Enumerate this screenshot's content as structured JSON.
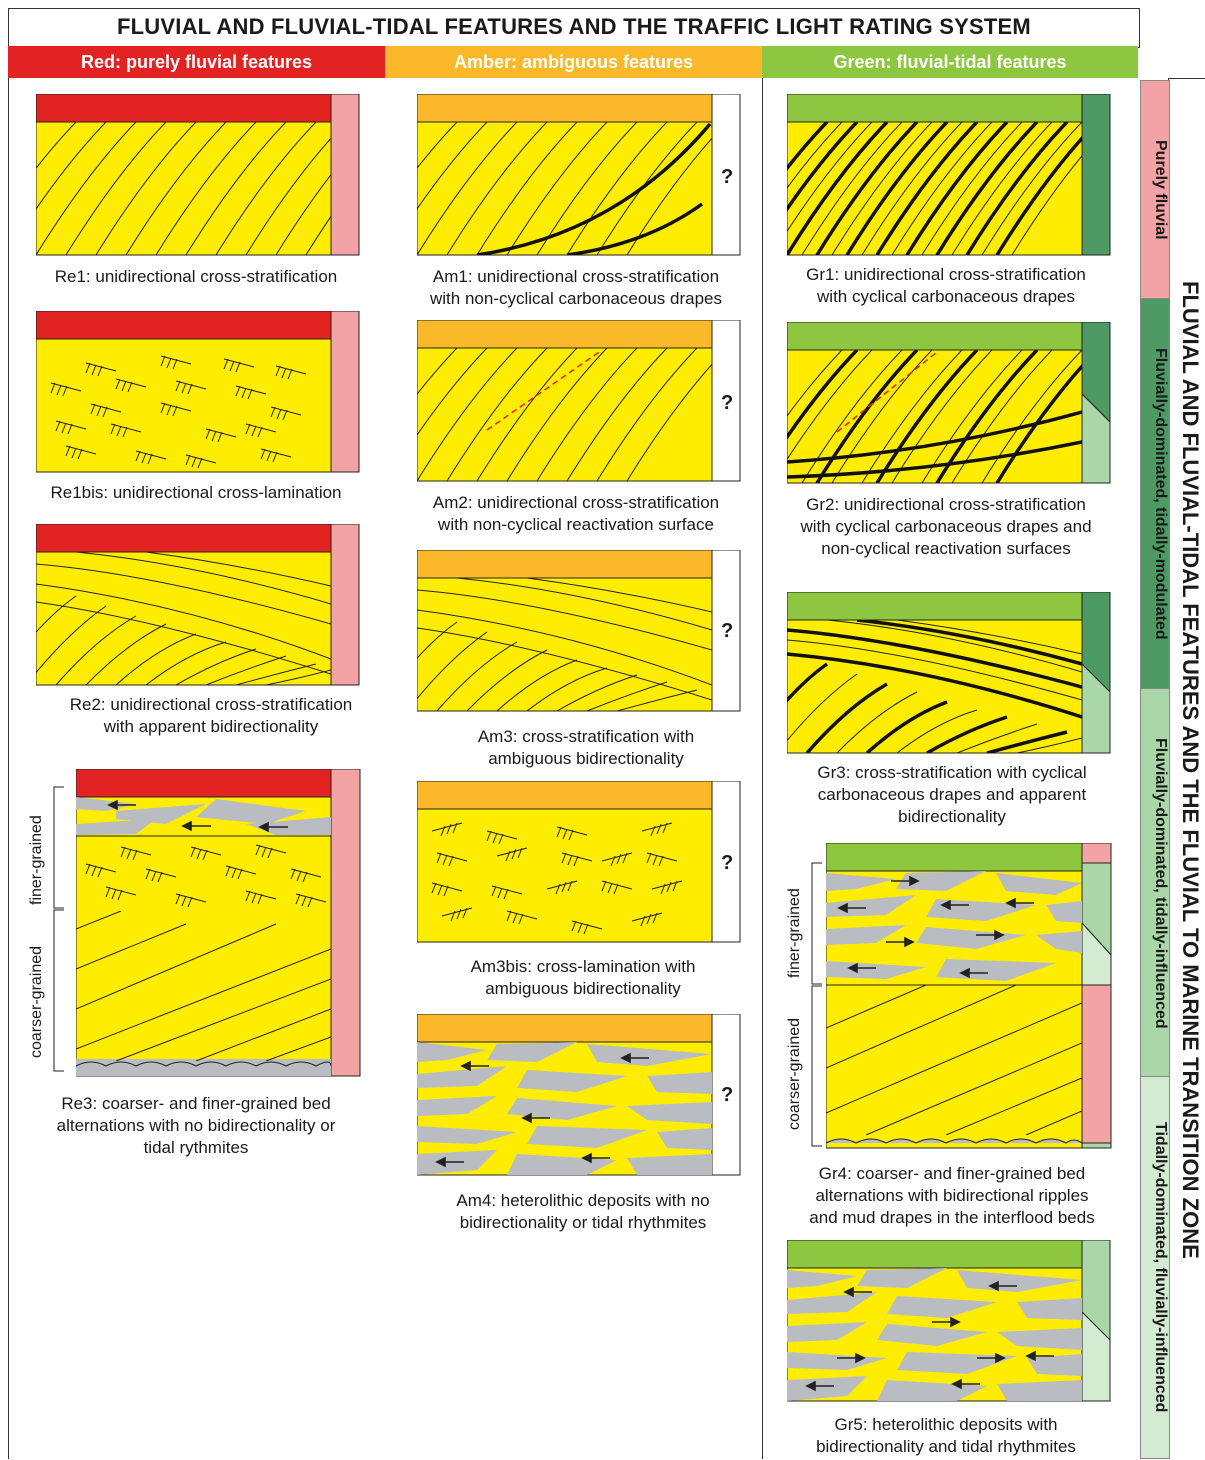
{
  "title": "FLUVIAL AND FLUVIAL-TIDAL FEATURES AND THE TRAFFIC LIGHT RATING SYSTEM",
  "side_title": "FLUVIAL AND FLUVIAL-TIDAL FEATURES AND THE FLUVIAL TO MARINE TRANSITION ZONE",
  "colors": {
    "red": "#e32322",
    "amber": "#fbb829",
    "green": "#8dc63f",
    "sand": "#ffed00",
    "mud": "#b9bcc0",
    "pink": "#f4a3a4",
    "dark_green": "#4e9a64",
    "light_green": "#a9d7a8",
    "pale_green": "#d3ebd1"
  },
  "columns": {
    "red": "Red: purely fluvial features",
    "amber": "Amber: ambiguous features",
    "green": "Green: fluvial-tidal features"
  },
  "question_mark": "?",
  "grain": {
    "finer": "finer-grained",
    "coarser": "coarser-grained"
  },
  "zones": {
    "z1": "Purely fluvial",
    "z2": "Fluvially-dominated, tidally-modulated",
    "z3": "Fluvially-dominated, tidally-influenced",
    "z4": "Tidally-dominated, fluvially-influenced"
  },
  "captions": {
    "re1": "Re1: unidirectional cross-stratification",
    "re1bis": "Re1bis: unidirectional cross-lamination",
    "re2_1": "Re2: unidirectional cross-stratification",
    "re2_2": "with apparent bidirectionality",
    "re3_1": "Re3: coarser- and finer-grained bed",
    "re3_2": "alternations with no bidirectionality or",
    "re3_3": "tidal rythmites",
    "am1_1": "Am1: unidirectional cross-stratification",
    "am1_2": "with non-cyclical carbonaceous drapes",
    "am2_1": "Am2: unidirectional cross-stratification",
    "am2_2": "with non-cyclical reactivation surface",
    "am3_1": "Am3: cross-stratification with",
    "am3_2": "ambiguous bidirectionality",
    "am3bis_1": "Am3bis: cross-lamination with",
    "am3bis_2": "ambiguous bidirectionality",
    "am4_1": "Am4: heterolithic deposits with no",
    "am4_2": "bidirectionality or tidal rhythmites",
    "gr1_1": "Gr1: unidirectional cross-stratification",
    "gr1_2": "with cyclical carbonaceous drapes",
    "gr2_1": "Gr2: unidirectional cross-stratification",
    "gr2_2": "with cyclical carbonaceous drapes and",
    "gr2_3": "non-cyclical reactivation surfaces",
    "gr3_1": "Gr3:  cross-stratification with cyclical",
    "gr3_2": "carbonaceous drapes and apparent",
    "gr3_3": "bidirectionality",
    "gr4_1": "Gr4: coarser- and finer-grained bed",
    "gr4_2": "alternations with bidirectional ripples",
    "gr4_3": "and mud drapes in the interflood beds",
    "gr5_1": "Gr5: heterolithic deposits with",
    "gr5_2": "bidirectionality and tidal rhythmites"
  }
}
